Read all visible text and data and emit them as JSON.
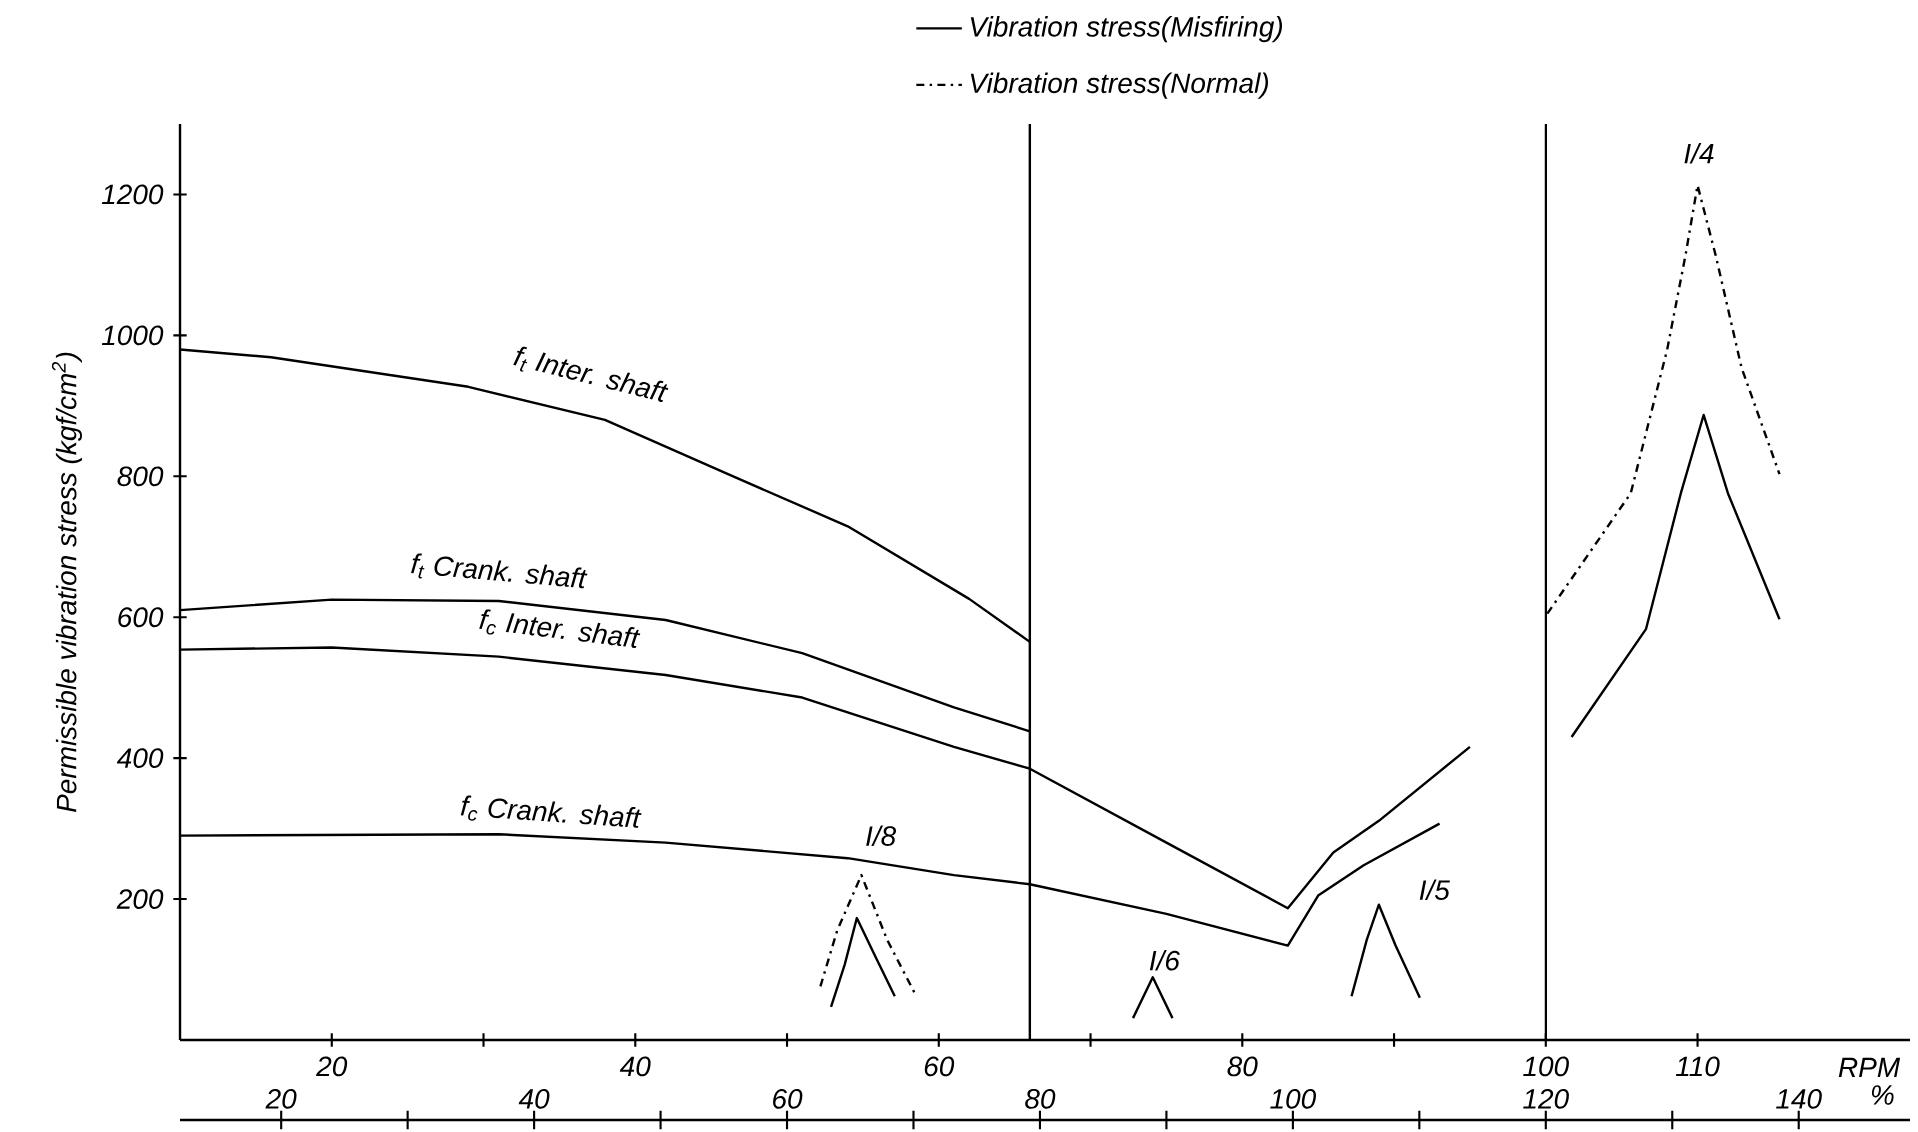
{
  "chart_data": {
    "type": "line",
    "xlabel": "RPM",
    "x2label": "%",
    "ylabel": "Permissible vibration stress (kgf/cm$^{2}$)",
    "xlim": [
      10,
      124
    ],
    "x2lim": [
      12,
      148.8
    ],
    "ylim": [
      0,
      1300
    ],
    "xticks": [
      20,
      {
        "value": 30,
        "label": null
      },
      40,
      {
        "value": 50,
        "label": null
      },
      60,
      {
        "value": 70,
        "label": null
      },
      80,
      {
        "value": 90,
        "label": null
      },
      100,
      110
    ],
    "x2ticks": [
      20,
      40,
      60,
      80,
      100,
      120,
      140
    ],
    "yticks": [
      200,
      400,
      600,
      800,
      1000,
      1200
    ],
    "marker": "none",
    "legend": "top",
    "series": [
      {
        "color": "#000000",
        "line_style": "solid",
        "x": [
          10,
          16,
          29,
          38,
          46,
          54,
          62,
          66
        ],
        "values": [
          980,
          969,
          927,
          880,
          804,
          729,
          626,
          565
        ]
      },
      {
        "color": "#000000",
        "line_style": "solid",
        "x": [
          10,
          20,
          31,
          42,
          51,
          61,
          66
        ],
        "values": [
          610,
          625,
          623,
          596,
          549,
          472,
          438
        ]
      },
      {
        "color": "#000000",
        "line_style": "solid",
        "x": [
          10,
          20,
          31,
          42,
          51,
          61,
          66,
          75,
          83,
          86,
          89,
          95
        ],
        "values": [
          554,
          557,
          544,
          518,
          486,
          416,
          385,
          280,
          187,
          266,
          311,
          416
        ]
      },
      {
        "color": "#000000",
        "line_style": "solid",
        "x": [
          10,
          31,
          42,
          54,
          61,
          66,
          75,
          83,
          85,
          88,
          93
        ],
        "values": [
          290,
          292,
          280,
          258,
          234,
          221,
          179,
          134,
          205,
          248,
          307
        ]
      },
      {
        "name": "Vibration stress(Misfiring)",
        "color": "#000000",
        "line_style": "solid",
        "x": [
          52.9,
          53.8,
          54.6,
          55.9,
          57.1,
          65,
          72.8,
          74.1,
          75.4,
          80,
          87.2,
          88.2,
          89.0,
          90.1,
          91.7,
          96,
          101.7,
          106.6,
          108.9,
          110.4,
          112.0,
          115.4
        ],
        "values": [
          47,
          107,
          173,
          115,
          62,
          null,
          31,
          89,
          31,
          null,
          62,
          142,
          192,
          134,
          60,
          null,
          430,
          583,
          776,
          887,
          776,
          597
        ]
      },
      {
        "name": "Vibration stress(Normal)",
        "color": "#000000",
        "line_style": "dashdot",
        "x": [
          52.2,
          53.3,
          54.9,
          56.6,
          58.4,
          80,
          100.1,
          105.6,
          108.0,
          109.2,
          110.0,
          111.2,
          112.9,
          115.4
        ],
        "values": [
          76,
          155,
          234,
          142,
          67,
          null,
          605,
          776,
          980,
          1113,
          1213,
          1113,
          954,
          803
        ]
      }
    ],
    "ref_lines": [
      {
        "axis": "x",
        "value": 66,
        "color": "#000000"
      },
      {
        "axis": "x",
        "value": 100,
        "color": "#000000"
      }
    ],
    "annotations": [
      "f$_{t}$ Inter. shaft",
      "f$_{t}$ Crank. shaft",
      "f$_{c}$ Inter. shaft",
      "f$_{c}$ Crank. shaft",
      "I/8",
      "I/6",
      "I/5",
      "I/4"
    ]
  }
}
